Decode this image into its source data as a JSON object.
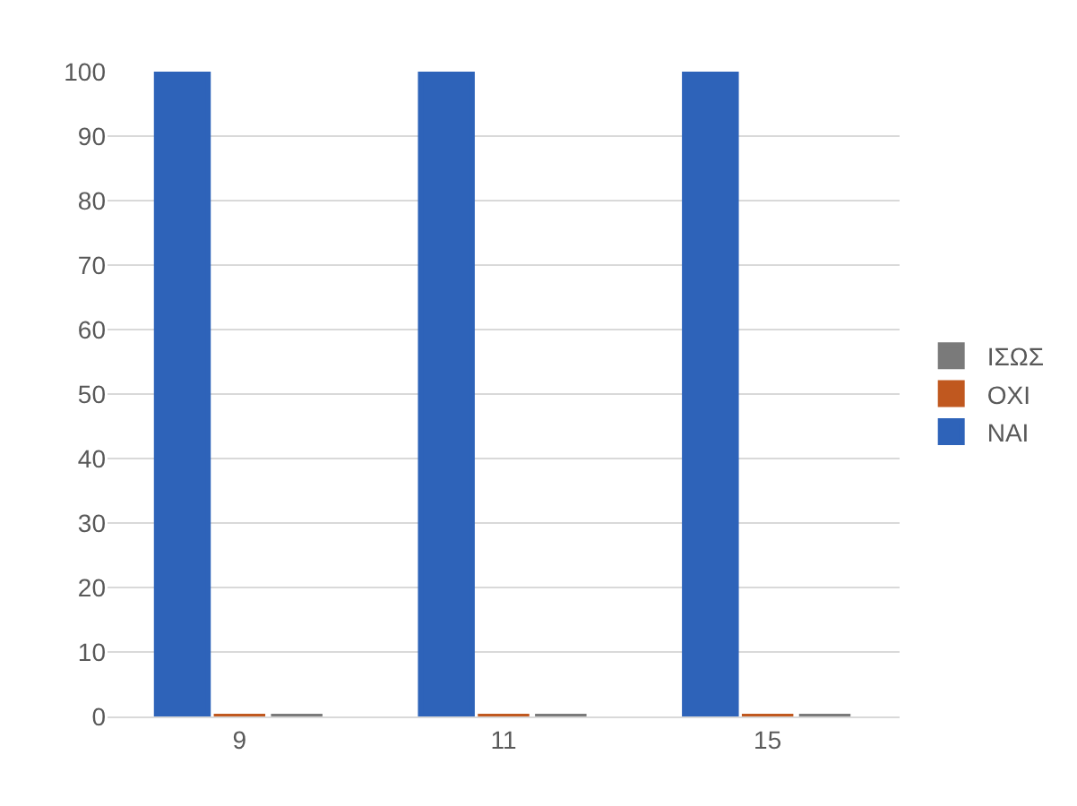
{
  "chart_data": {
    "type": "bar",
    "categories": [
      "9",
      "11",
      "15"
    ],
    "series": [
      {
        "name": "ΝΑΙ",
        "color": "#2e63b9",
        "values": [
          100,
          100,
          100
        ]
      },
      {
        "name": "ΟΧΙ",
        "color": "#c0581f",
        "values": [
          0,
          0,
          0
        ]
      },
      {
        "name": "ΙΣΩΣ",
        "color": "#7a7a7a",
        "values": [
          0,
          0,
          0
        ]
      }
    ],
    "ylim": [
      0,
      100
    ],
    "yticks": [
      0,
      10,
      20,
      30,
      40,
      50,
      60,
      70,
      80,
      90,
      100
    ],
    "grid": "y",
    "legend": "right"
  }
}
